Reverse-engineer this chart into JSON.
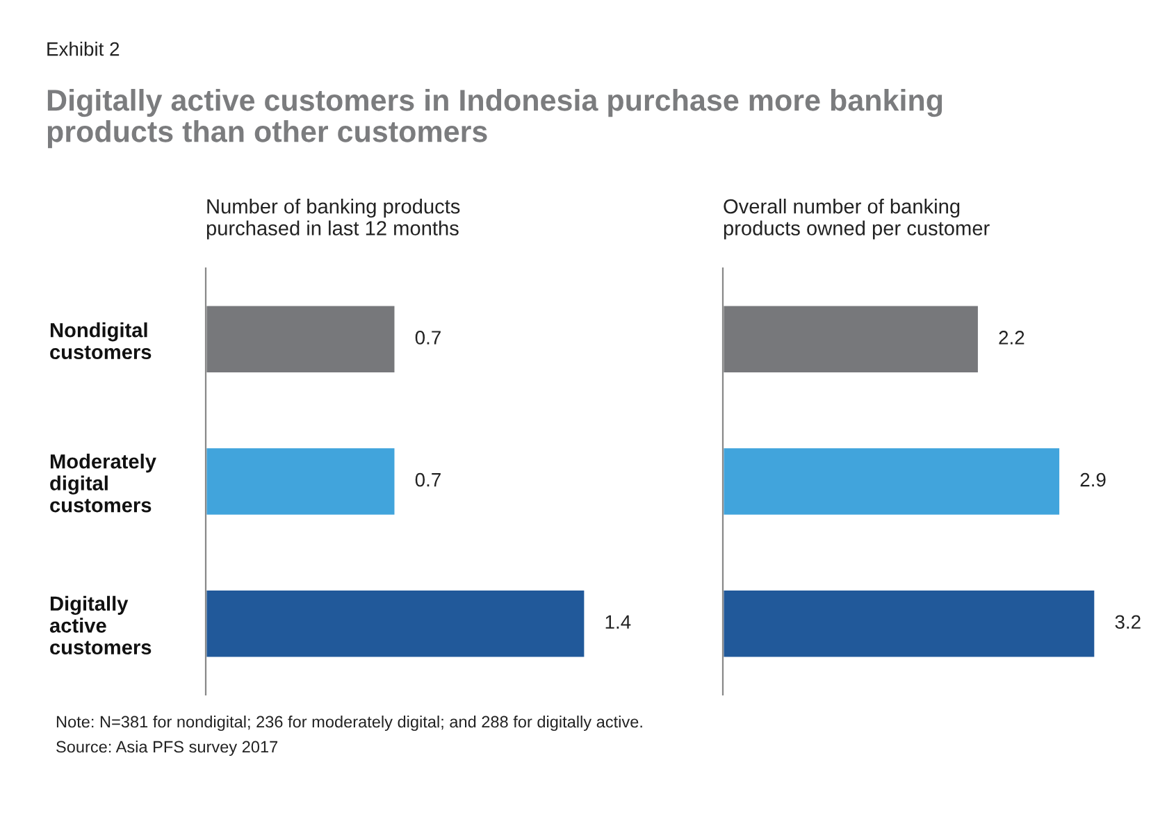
{
  "chart_data": [
    {
      "type": "bar",
      "orientation": "horizontal",
      "title": "Number of banking products\npurchased in last 12 months",
      "categories": [
        "Nondigital\ncustomers",
        "Moderately\ndigital\ncustomers",
        "Digitally\nactive\ncustomers"
      ],
      "values": [
        0.7,
        0.7,
        1.4
      ],
      "colors": [
        "#77787b",
        "#41a4dc",
        "#21599a"
      ],
      "data_labels": true,
      "grid": false,
      "annotations": [
        "Exhibit 2",
        "Digitally active customers in Indonesia purchase more banking\nproducts than other customers",
        "Note: N=381 for nondigital; 236 for moderately digital; and 288 for digitally active.",
        "Source: Asia PFS survey 2017"
      ]
    },
    {
      "type": "bar",
      "orientation": "horizontal",
      "title": "Overall number of banking\nproducts owned per customer",
      "categories": [
        null,
        null,
        null
      ],
      "values": [
        2.2,
        2.9,
        3.2
      ],
      "colors": [
        "#77787b",
        "#41a4dc",
        "#21599a"
      ],
      "data_labels": true,
      "grid": false
    }
  ]
}
